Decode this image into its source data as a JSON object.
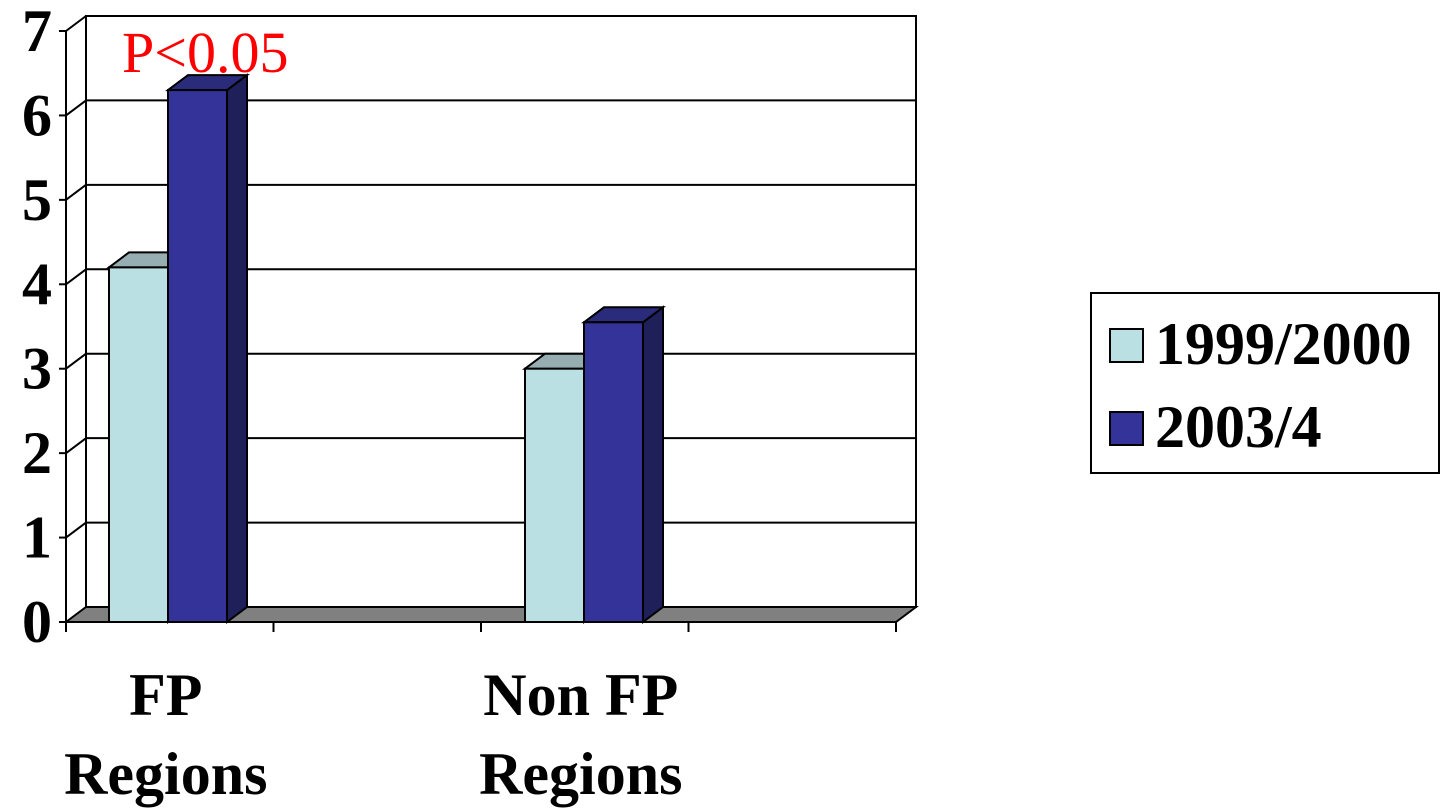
{
  "chart_data": {
    "type": "bar",
    "categories": [
      [
        "FP",
        "Regions"
      ],
      [
        "Non FP",
        "Regions"
      ]
    ],
    "series": [
      {
        "name": "1999/2000",
        "values": [
          4.2,
          3.0
        ]
      },
      {
        "name": "2003/4",
        "values": [
          6.3,
          3.55
        ]
      }
    ],
    "ylim": [
      0,
      7
    ],
    "yticks": [
      "0",
      "1",
      "2",
      "3",
      "4",
      "5",
      "6",
      "7"
    ],
    "annotation": "P<0.05",
    "grid": true,
    "legend": "right",
    "style": "3d-clustered-column"
  },
  "colors": {
    "series_front": [
      "#BBE0E3",
      "#333399"
    ],
    "series_top": [
      "#96AEB1",
      "#2B2B7C"
    ],
    "series_side": [
      "#7E9DA0",
      "#1F1F5A"
    ],
    "annotation": "#FF0000",
    "floor": "#808080",
    "grid": "#000000"
  }
}
